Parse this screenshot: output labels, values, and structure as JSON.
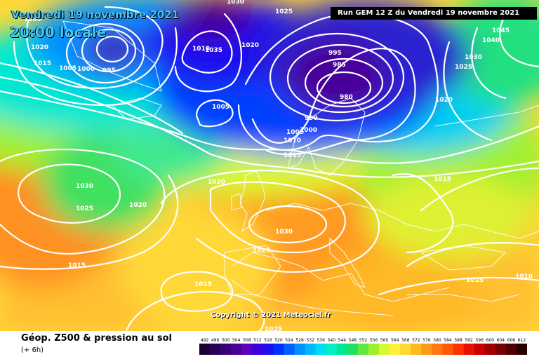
{
  "header": {
    "date": "Vendredi 19 novembre 2021",
    "time": "20:00 locale",
    "run": "Run GEM 12 Z du Vendredi 19 novembre 2021"
  },
  "copyright": "Copyright © 2021 Meteociel.fr",
  "footer": {
    "title": "Géop. Z500 & pression au sol",
    "subtitle": "(+ 6h)"
  },
  "legend": {
    "values": [
      "492",
      "496",
      "500",
      "504",
      "508",
      "512",
      "516",
      "520",
      "524",
      "528",
      "532",
      "536",
      "540",
      "544",
      "548",
      "552",
      "556",
      "560",
      "564",
      "568",
      "572",
      "576",
      "580",
      "584",
      "588",
      "592",
      "596",
      "600",
      "604",
      "608",
      "612"
    ],
    "colors": [
      "#1a0033",
      "#2a0055",
      "#3a0077",
      "#4a0099",
      "#5b00bb",
      "#3a00dd",
      "#1a10f0",
      "#0030ff",
      "#0060ff",
      "#0090ff",
      "#00b8ff",
      "#00dcf0",
      "#00f0c0",
      "#00e890",
      "#20e060",
      "#60e840",
      "#a0f030",
      "#d8f830",
      "#fff040",
      "#ffd830",
      "#ffb820",
      "#ff9818",
      "#ff7810",
      "#ff5808",
      "#ff3000",
      "#e81000",
      "#c80000",
      "#a00000",
      "#780000",
      "#500000",
      "#280000"
    ]
  },
  "isobars": [
    "1030",
    "1025",
    "1005",
    "1020",
    "1015",
    "1005",
    "1000",
    "995",
    "1010",
    "1035",
    "1020",
    "1005",
    "995",
    "985",
    "980",
    "990",
    "1005",
    "1000",
    "1010",
    "1015",
    "1045",
    "1040",
    "1030",
    "1025",
    "1020",
    "1030",
    "1025",
    "1020",
    "1015",
    "1020",
    "1015",
    "1030",
    "1025",
    "1015",
    "1015",
    "1010",
    "1025"
  ],
  "colors": {
    "isoline": "#ffffff",
    "coast": "#ffffff",
    "run_bg": "#000000",
    "title_text": "#40c8ff"
  }
}
